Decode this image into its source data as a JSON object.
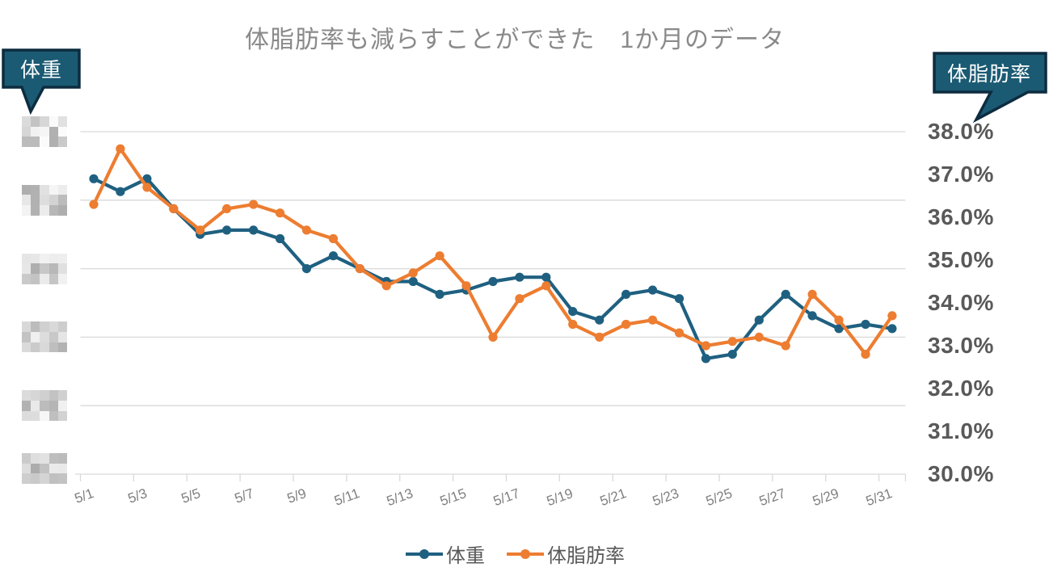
{
  "title": "体脂肪率も減らすことができた　1か月のデータ",
  "callouts": {
    "left_label": "体重",
    "right_label": "体脂肪率"
  },
  "colors": {
    "weight": "#1f6080",
    "bodyfat": "#ed7d31",
    "callout_fill": "#1b5a73",
    "callout_border": "#0d2c40",
    "grid": "#d9d9d9",
    "title_text": "#8a8a8a",
    "right_axis_text": "#595959",
    "x_axis_text": "#7f7f7f",
    "legend_text": "#595959"
  },
  "chart_data": {
    "type": "line",
    "x": [
      "5/1",
      "5/2",
      "5/3",
      "5/4",
      "5/5",
      "5/6",
      "5/7",
      "5/8",
      "5/9",
      "5/10",
      "5/11",
      "5/12",
      "5/13",
      "5/14",
      "5/15",
      "5/16",
      "5/17",
      "5/18",
      "5/19",
      "5/20",
      "5/21",
      "5/22",
      "5/23",
      "5/24",
      "5/25",
      "5/26",
      "5/27",
      "5/28",
      "5/29",
      "5/30",
      "5/31"
    ],
    "x_tick_labels": [
      "5/1",
      "5/3",
      "5/5",
      "5/7",
      "5/9",
      "5/11",
      "5/13",
      "5/15",
      "5/17",
      "5/19",
      "5/21",
      "5/23",
      "5/25",
      "5/27",
      "5/29",
      "5/31"
    ],
    "right_axis_ticks": [
      "38.0%",
      "37.0%",
      "36.0%",
      "35.0%",
      "34.0%",
      "33.0%",
      "32.0%",
      "31.0%",
      "30.0%"
    ],
    "right_axis_range": [
      30,
      38
    ],
    "left_axis": {
      "redacted": true,
      "note": "weight-axis tick labels are pixelated (censored) in the source image",
      "tick_count": 6
    },
    "legend_position": "bottom",
    "grid": true,
    "series": [
      {
        "name": "体重",
        "axis": "left",
        "color_key": "weight",
        "values_note": "left-axis weight values are redacted in the image; these values are the plotted positions expressed on the right percent-axis scale",
        "values": [
          36.9,
          36.6,
          36.9,
          36.2,
          35.6,
          35.7,
          35.7,
          35.5,
          34.8,
          35.1,
          34.8,
          34.5,
          34.5,
          34.2,
          34.3,
          34.5,
          34.6,
          34.6,
          33.8,
          33.6,
          34.2,
          34.3,
          34.1,
          32.7,
          32.8,
          33.6,
          34.2,
          33.7,
          33.4,
          33.5,
          33.4
        ]
      },
      {
        "name": "体脂肪率",
        "axis": "right",
        "color_key": "bodyfat",
        "values": [
          36.3,
          37.6,
          36.7,
          36.2,
          35.7,
          36.2,
          36.3,
          36.1,
          35.7,
          35.5,
          34.8,
          34.4,
          34.7,
          35.1,
          34.4,
          33.2,
          34.1,
          34.4,
          33.5,
          33.2,
          33.5,
          33.6,
          33.3,
          33.0,
          33.1,
          33.2,
          33.0,
          34.2,
          33.6,
          32.8,
          33.7
        ]
      }
    ]
  }
}
